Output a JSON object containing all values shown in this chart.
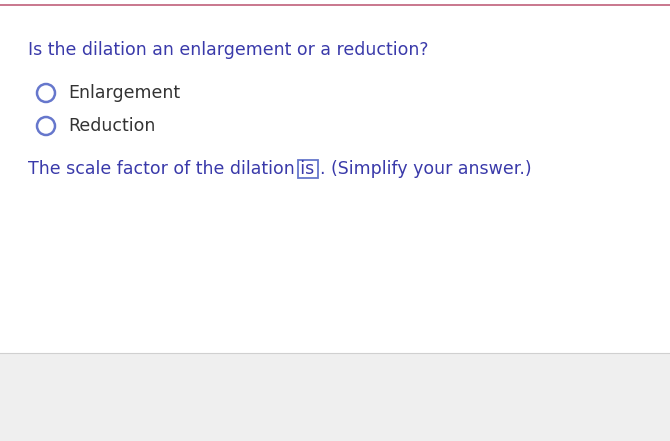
{
  "title_line": "Is the dilation an enlargement or a reduction?",
  "option1": "Enlargement",
  "option2": "Reduction",
  "scale_text_before": "The scale factor of the dilation is",
  "scale_text_after": ". (Simplify your answer.)",
  "question_color": "#3a3aaa",
  "option_text_color": "#333333",
  "circle_color": "#6677cc",
  "scale_label_color": "#3a3aaa",
  "scale_answer_color": "#3a3aaa",
  "box_border_color": "#6677cc",
  "top_border_color": "#c0607a",
  "bottom_bg_color": "#efefef",
  "background_color": "#ffffff",
  "figwidth": 6.7,
  "figheight": 4.41,
  "dpi": 100
}
